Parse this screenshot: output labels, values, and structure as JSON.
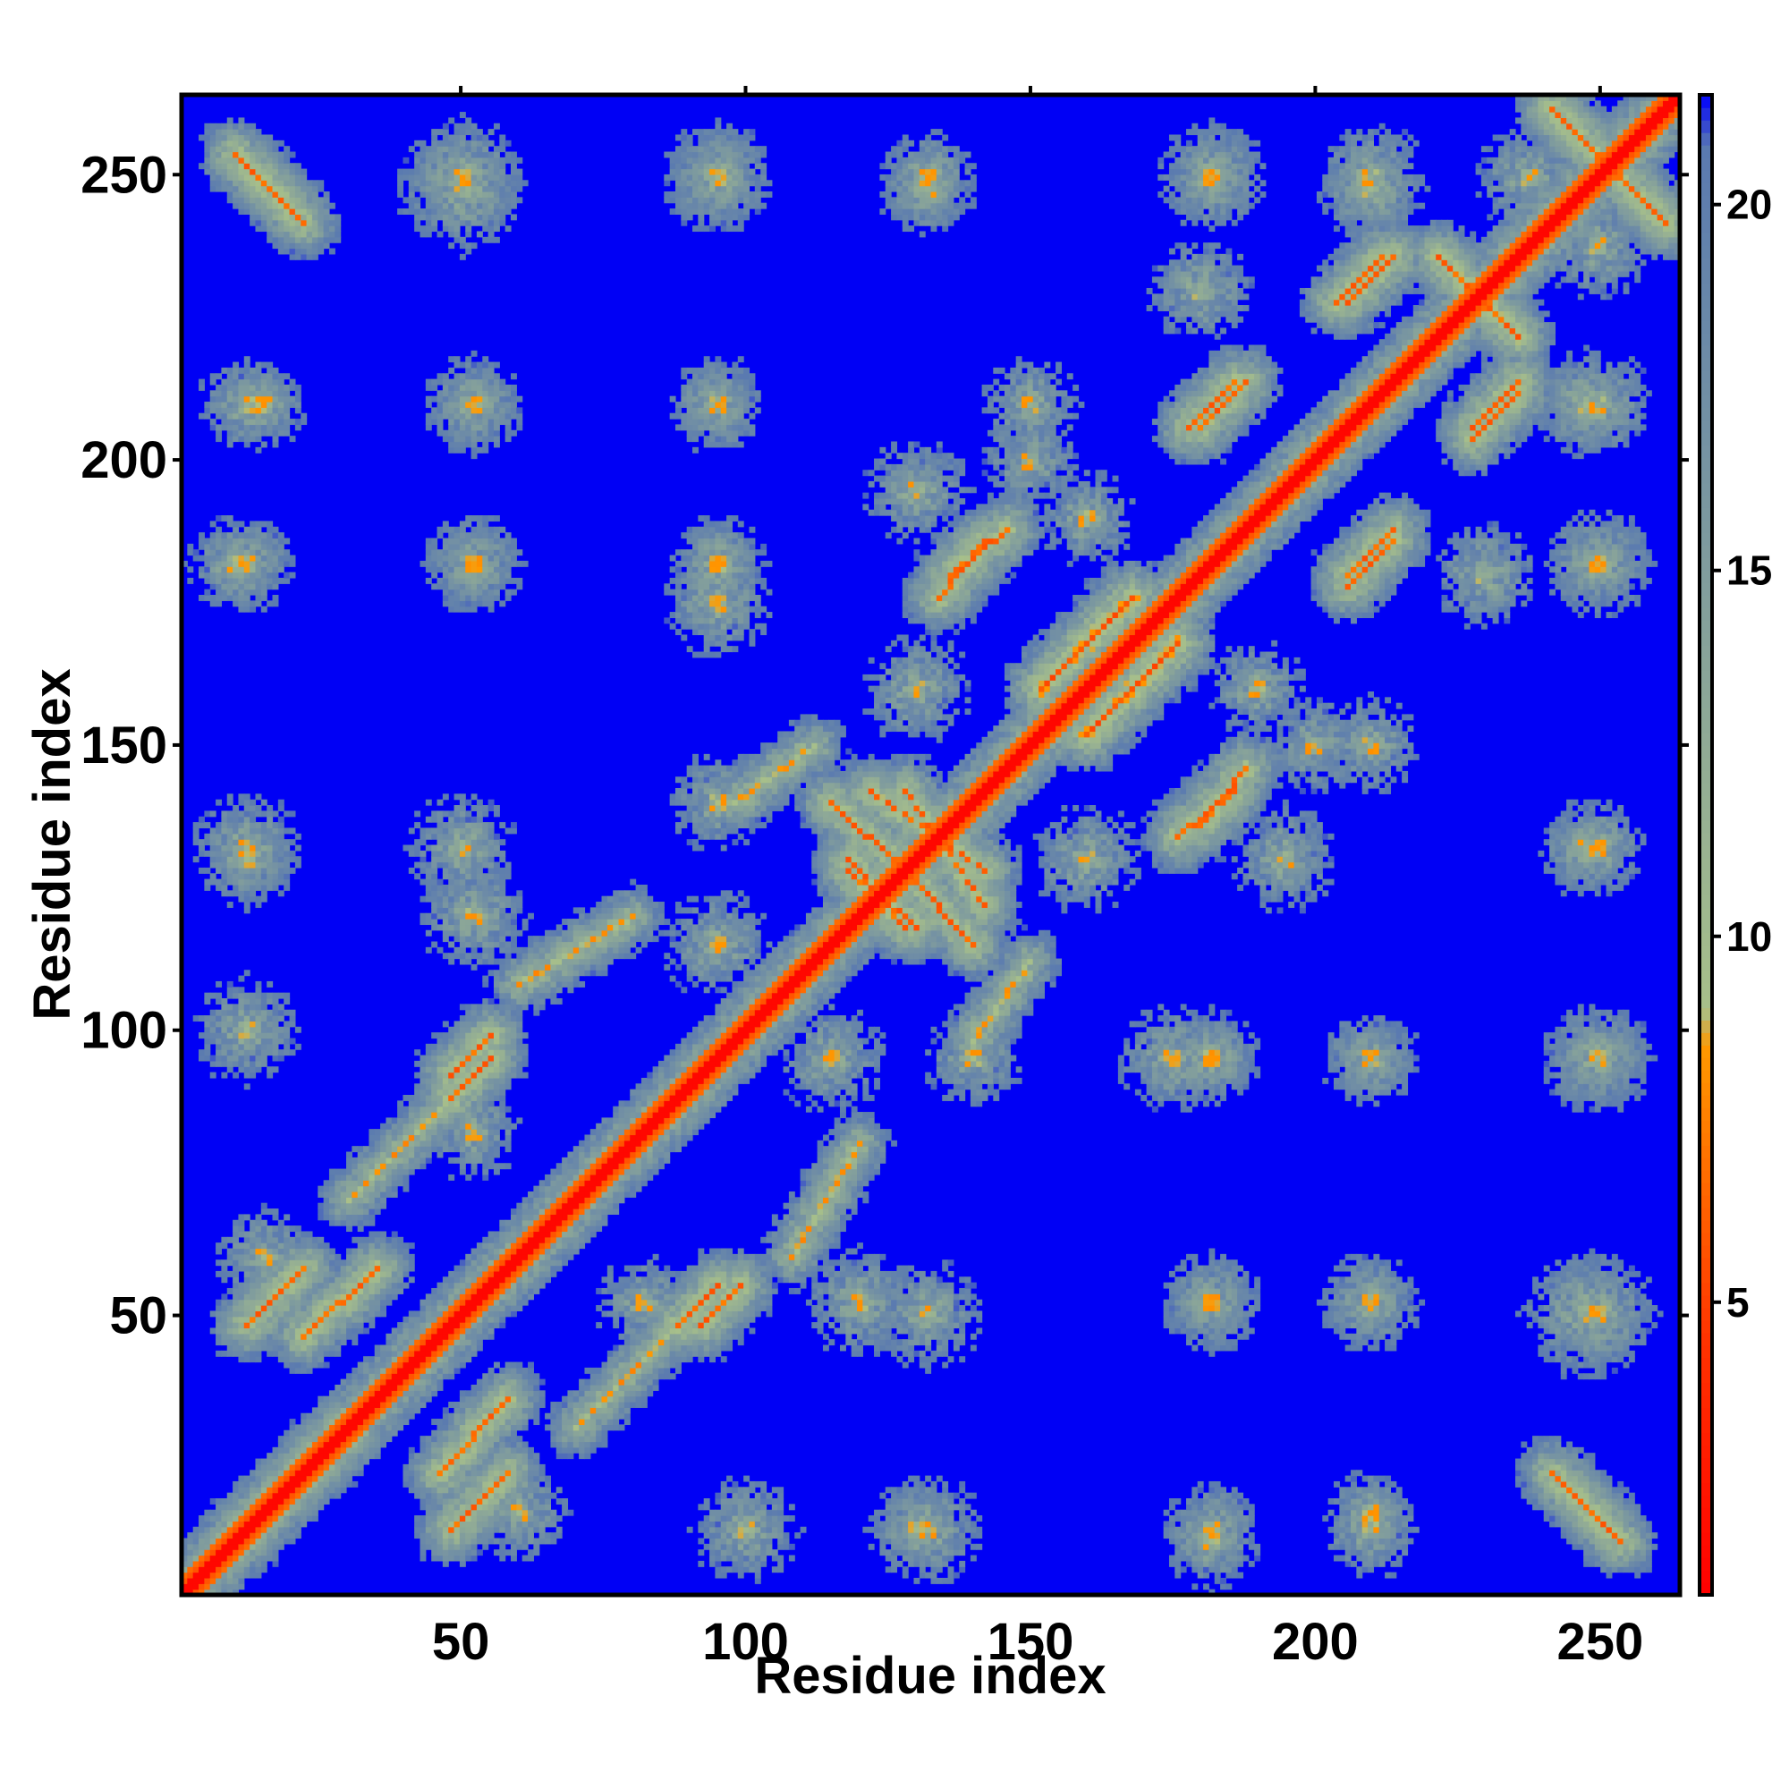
{
  "chart_data": {
    "type": "heatmap",
    "title": "",
    "xlabel": "Residue index",
    "ylabel": "Residue index",
    "n_residues": 264,
    "xlim": [
      1,
      264
    ],
    "ylim": [
      1,
      264
    ],
    "x_ticks": [
      50,
      100,
      150,
      200,
      250
    ],
    "y_ticks": [
      50,
      100,
      150,
      200,
      250
    ],
    "colorbar": {
      "range": [
        1,
        21.5
      ],
      "ticks": [
        5,
        10,
        15,
        20
      ],
      "stops": [
        {
          "value": 1,
          "color": "#ff0000"
        },
        {
          "value": 4.5,
          "color": "#ff3300"
        },
        {
          "value": 8.5,
          "color": "#ff9900"
        },
        {
          "value": 9,
          "color": "#a8c08a"
        },
        {
          "value": 20.8,
          "color": "#5a7ab0"
        },
        {
          "value": 21.5,
          "color": "#0000ff"
        }
      ]
    },
    "background_color": "#0000f5",
    "diagonal": {
      "value": 1.5
    },
    "contact_features": [
      {
        "kind": "parallel",
        "i": [
          10,
          30
        ],
        "j": [
          10,
          30
        ],
        "value": 6
      },
      {
        "kind": "anti",
        "i": [
          12,
          22
        ],
        "j": [
          252,
          242
        ],
        "value": 7
      },
      {
        "kind": "anti",
        "i": [
          22,
          35
        ],
        "j": [
          46,
          58
        ],
        "value": 7
      },
      {
        "kind": "parallel",
        "i": [
          48,
          58
        ],
        "j": [
          12,
          22
        ],
        "value": 7
      },
      {
        "kind": "parallel",
        "i": [
          48,
          55
        ],
        "j": [
          92,
          99
        ],
        "value": 7
      },
      {
        "kind": "parallel",
        "i": [
          88,
          95
        ],
        "j": [
          48,
          55
        ],
        "value": 7
      },
      {
        "kind": "anti",
        "i": [
          115,
          128
        ],
        "j": [
          140,
          128
        ],
        "value": 7
      },
      {
        "kind": "anti",
        "i": [
          118,
          130
        ],
        "j": [
          128,
          118
        ],
        "value": 7
      },
      {
        "kind": "anti",
        "i": [
          128,
          142
        ],
        "j": [
          142,
          122
        ],
        "value": 7
      },
      {
        "kind": "parallel",
        "i": [
          136,
          146
        ],
        "j": [
          180,
          188
        ],
        "value": 7
      },
      {
        "kind": "parallel",
        "i": [
          176,
          186
        ],
        "j": [
          134,
          142
        ],
        "value": 7
      },
      {
        "kind": "parallel",
        "i": [
          152,
          168
        ],
        "j": [
          160,
          176
        ],
        "value": 6
      },
      {
        "kind": "anti",
        "i": [
          222,
          236
        ],
        "j": [
          236,
          222
        ],
        "value": 7
      },
      {
        "kind": "parallel",
        "i": [
          206,
          214
        ],
        "j": [
          180,
          188
        ],
        "value": 7
      },
      {
        "kind": "parallel",
        "i": [
          178,
          186
        ],
        "j": [
          206,
          214
        ],
        "value": 7
      },
      {
        "kind": "parallel",
        "i": [
          228,
          236
        ],
        "j": [
          204,
          212
        ],
        "value": 7
      },
      {
        "kind": "parallel",
        "i": [
          206,
          214
        ],
        "j": [
          228,
          236
        ],
        "value": 7
      },
      {
        "kind": "anti",
        "i": [
          242,
          262
        ],
        "j": [
          262,
          242
        ],
        "value": 7
      },
      {
        "kind": "anti",
        "i": [
          244,
          254
        ],
        "j": [
          20,
          10
        ],
        "value": 7
      },
      {
        "kind": "parallel",
        "i": [
          98,
          112
        ],
        "j": [
          140,
          150
        ],
        "value": 9
      },
      {
        "kind": "parallel",
        "i": [
          60,
          80
        ],
        "j": [
          108,
          120
        ],
        "value": 9
      },
      {
        "kind": "parallel",
        "i": [
          30,
          50
        ],
        "j": [
          70,
          90
        ],
        "value": 9
      }
    ],
    "contact_blobs": [
      {
        "i": 10,
        "j": 182,
        "r": 9
      },
      {
        "i": 12,
        "j": 132,
        "r": 10
      },
      {
        "i": 15,
        "j": 210,
        "r": 8
      },
      {
        "i": 52,
        "j": 182,
        "r": 9
      },
      {
        "i": 52,
        "j": 210,
        "r": 9
      },
      {
        "i": 50,
        "j": 132,
        "r": 10
      },
      {
        "i": 95,
        "j": 182,
        "r": 8
      },
      {
        "i": 95,
        "j": 210,
        "r": 8
      },
      {
        "i": 100,
        "j": 12,
        "r": 10
      },
      {
        "i": 130,
        "j": 12,
        "r": 9
      },
      {
        "i": 182,
        "j": 12,
        "r": 9
      },
      {
        "i": 182,
        "j": 52,
        "r": 9
      },
      {
        "i": 182,
        "j": 95,
        "r": 9
      },
      {
        "i": 210,
        "j": 12,
        "r": 9
      },
      {
        "i": 210,
        "j": 52,
        "r": 9
      },
      {
        "i": 210,
        "j": 95,
        "r": 9
      },
      {
        "i": 248,
        "j": 50,
        "r": 12
      },
      {
        "i": 250,
        "j": 95,
        "r": 10
      },
      {
        "i": 248,
        "j": 132,
        "r": 9
      },
      {
        "i": 250,
        "j": 182,
        "r": 10
      },
      {
        "i": 248,
        "j": 210,
        "r": 10
      },
      {
        "i": 95,
        "j": 250,
        "r": 10
      },
      {
        "i": 50,
        "j": 250,
        "r": 11
      },
      {
        "i": 132,
        "j": 250,
        "r": 9
      },
      {
        "i": 182,
        "j": 250,
        "r": 10
      },
      {
        "i": 210,
        "j": 250,
        "r": 10
      },
      {
        "i": 175,
        "j": 95,
        "r": 10
      },
      {
        "i": 160,
        "j": 130,
        "r": 10
      },
      {
        "i": 195,
        "j": 130,
        "r": 10
      },
      {
        "i": 190,
        "j": 160,
        "r": 9
      },
      {
        "i": 230,
        "j": 180,
        "r": 10
      },
      {
        "i": 238,
        "j": 250,
        "r": 10
      },
      {
        "i": 60,
        "j": 15,
        "r": 9
      },
      {
        "i": 82,
        "j": 52,
        "r": 9
      },
      {
        "i": 120,
        "j": 52,
        "r": 10
      },
      {
        "i": 115,
        "j": 95,
        "r": 10
      },
      {
        "i": 140,
        "j": 95,
        "r": 9
      },
      {
        "i": 150,
        "j": 200,
        "r": 9
      },
      {
        "i": 210,
        "j": 150,
        "r": 9
      }
    ]
  }
}
